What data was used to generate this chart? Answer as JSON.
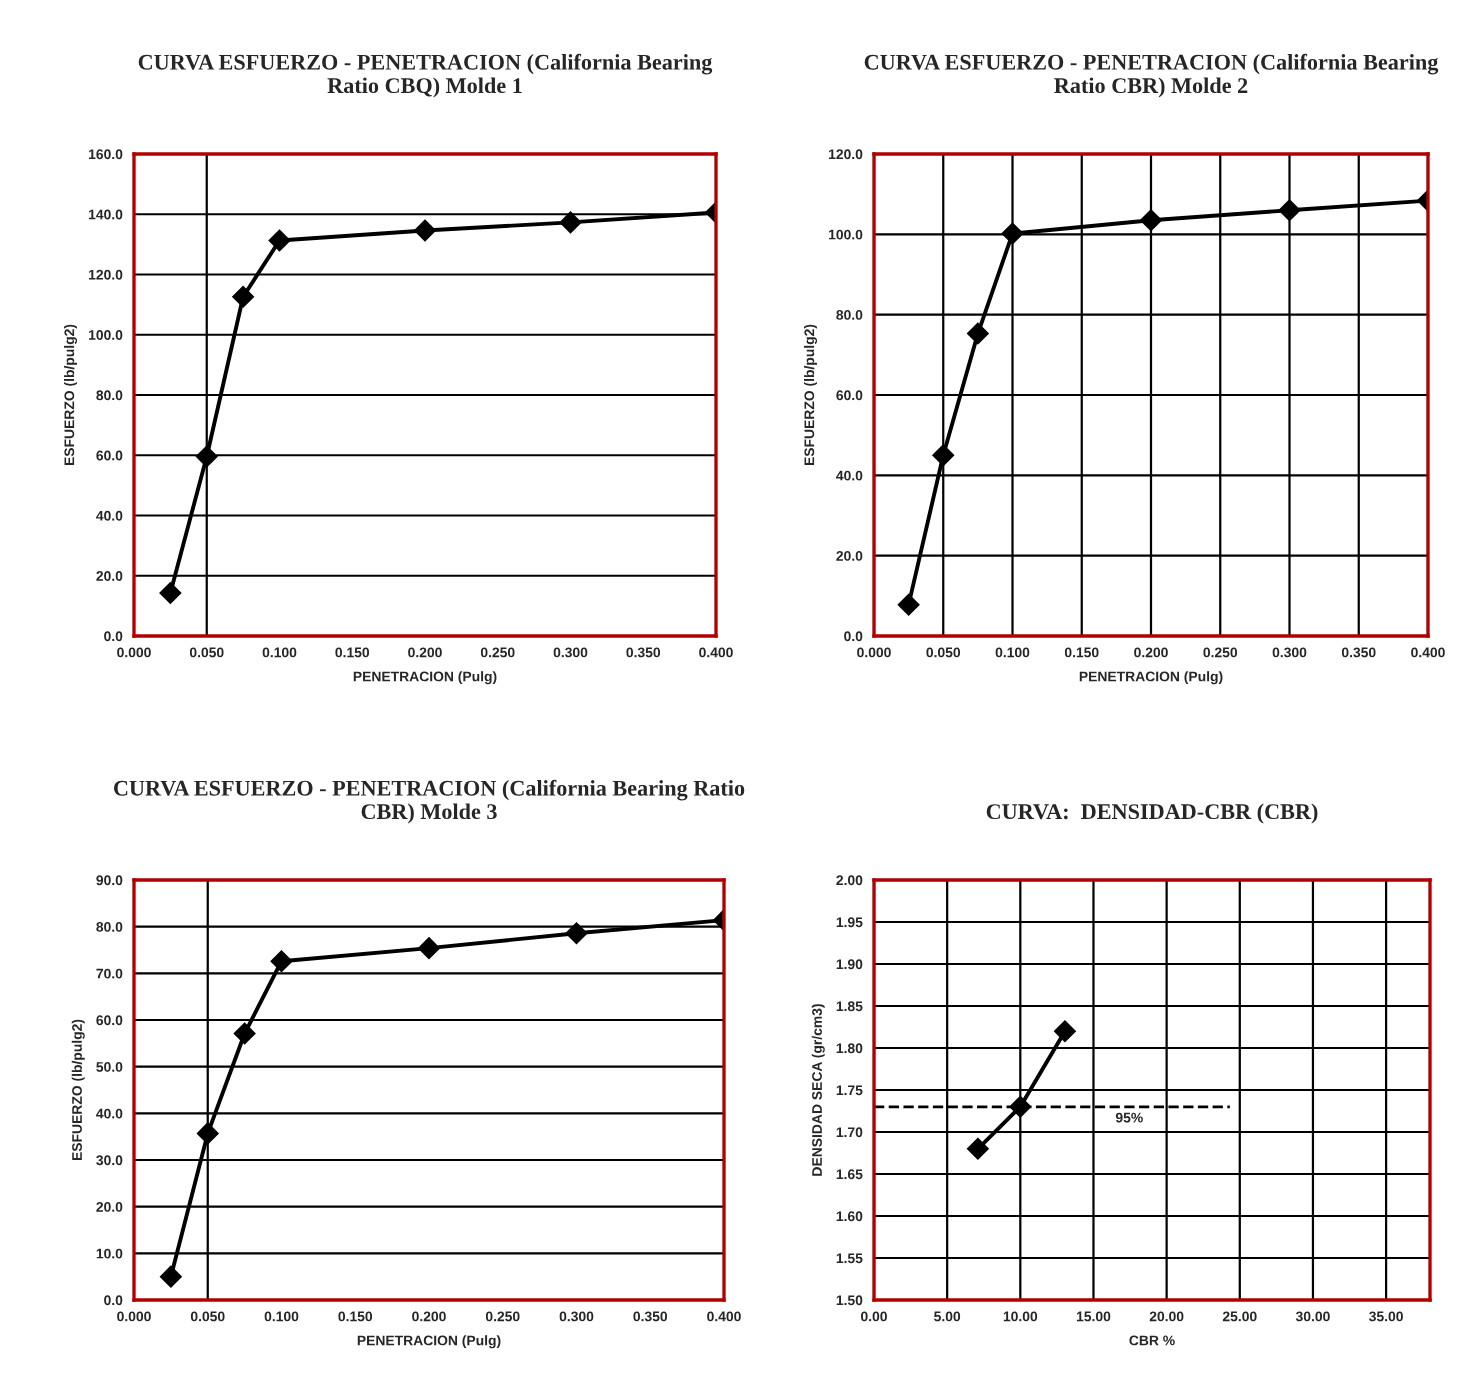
{
  "chart_data": [
    {
      "type": "line",
      "title": "CURVA ESFUERZO - PENETRACION (California Bearing Ratio CBQ) Molde 1",
      "xlabel": "PENETRACION (Pulg)",
      "ylabel": "ESFUERZO (lb/pulg2)",
      "x": [
        0.025,
        0.05,
        0.075,
        0.1,
        0.2,
        0.3,
        0.4
      ],
      "series": [
        {
          "color": "#000000",
          "values": [
            14.3,
            59.6,
            112.6,
            131.3,
            134.6,
            137.3,
            140.6
          ]
        }
      ],
      "xlim": [
        0,
        0.4
      ],
      "xticks": [
        {
          "value": 0,
          "label": "0.000"
        },
        {
          "value": 0.05,
          "label": "0.050"
        },
        {
          "value": 0.1,
          "label": "0.100"
        },
        {
          "value": 0.15,
          "label": "0.150"
        },
        {
          "value": 0.2,
          "label": "0.200"
        },
        {
          "value": 0.25,
          "label": "0.250"
        },
        {
          "value": 0.3,
          "label": "0.300"
        },
        {
          "value": 0.35,
          "label": "0.350"
        },
        {
          "value": 0.4,
          "label": "0.400"
        }
      ],
      "ylim": [
        0,
        160
      ],
      "yticks": [
        {
          "value": 0,
          "label": "0.0"
        },
        {
          "value": 20,
          "label": "20.0"
        },
        {
          "value": 40,
          "label": "40.0"
        },
        {
          "value": 60,
          "label": "60.0"
        },
        {
          "value": 80,
          "label": "80.0"
        },
        {
          "value": 100,
          "label": "100.0"
        },
        {
          "value": 120,
          "label": "120.0"
        },
        {
          "value": 140,
          "label": "140.0"
        },
        {
          "value": 160,
          "label": "160.0"
        }
      ],
      "ref_lines": [
        {
          "axis": "x",
          "value": 0.05
        }
      ],
      "grid": "y",
      "legend": false,
      "marker": "diamond",
      "line_style": "solid"
    },
    {
      "type": "line",
      "title": "CURVA ESFUERZO - PENETRACION (California Bearing Ratio CBR) Molde 2",
      "xlabel": "PENETRACION (Pulg)",
      "ylabel": "ESFUERZO (lb/pulg2)",
      "x": [
        0.025,
        0.05,
        0.075,
        0.1,
        0.2,
        0.3,
        0.4
      ],
      "series": [
        {
          "color": "#000000",
          "values": [
            7.8,
            45.0,
            75.3,
            100.2,
            103.5,
            106.0,
            108.4
          ]
        }
      ],
      "xlim": [
        0,
        0.4
      ],
      "xticks": [
        {
          "value": 0,
          "label": "0.000"
        },
        {
          "value": 0.05,
          "label": "0.050"
        },
        {
          "value": 0.1,
          "label": "0.100"
        },
        {
          "value": 0.15,
          "label": "0.150"
        },
        {
          "value": 0.2,
          "label": "0.200"
        },
        {
          "value": 0.25,
          "label": "0.250"
        },
        {
          "value": 0.3,
          "label": "0.300"
        },
        {
          "value": 0.35,
          "label": "0.350"
        },
        {
          "value": 0.4,
          "label": "0.400"
        }
      ],
      "ylim": [
        0,
        120
      ],
      "yticks": [
        {
          "value": 0,
          "label": "0.0"
        },
        {
          "value": 20,
          "label": "20.0"
        },
        {
          "value": 40,
          "label": "40.0"
        },
        {
          "value": 60,
          "label": "60.0"
        },
        {
          "value": 80,
          "label": "80.0"
        },
        {
          "value": 100,
          "label": "100.0"
        },
        {
          "value": 120,
          "label": "120.0"
        }
      ],
      "grid": true,
      "legend": false,
      "marker": "diamond",
      "line_style": "solid"
    },
    {
      "type": "line",
      "title": "CURVA ESFUERZO - PENETRACION (California Bearing Ratio CBR) Molde 3",
      "xlabel": "PENETRACION (Pulg)",
      "ylabel": "ESFUERZO (lb/pulg2)",
      "x": [
        0.025,
        0.05,
        0.075,
        0.1,
        0.2,
        0.3,
        0.4
      ],
      "series": [
        {
          "color": "#000000",
          "values": [
            5.0,
            35.7,
            57.1,
            72.6,
            75.4,
            78.6,
            81.4
          ]
        }
      ],
      "xlim": [
        0,
        0.4
      ],
      "xticks": [
        {
          "value": 0,
          "label": "0.000"
        },
        {
          "value": 0.05,
          "label": "0.050"
        },
        {
          "value": 0.1,
          "label": "0.100"
        },
        {
          "value": 0.15,
          "label": "0.150"
        },
        {
          "value": 0.2,
          "label": "0.200"
        },
        {
          "value": 0.25,
          "label": "0.250"
        },
        {
          "value": 0.3,
          "label": "0.300"
        },
        {
          "value": 0.35,
          "label": "0.350"
        },
        {
          "value": 0.4,
          "label": "0.400"
        }
      ],
      "ylim": [
        0,
        90
      ],
      "yticks": [
        {
          "value": 0,
          "label": "0.0"
        },
        {
          "value": 10,
          "label": "10.0"
        },
        {
          "value": 20,
          "label": "20.0"
        },
        {
          "value": 30,
          "label": "30.0"
        },
        {
          "value": 40,
          "label": "40.0"
        },
        {
          "value": 50,
          "label": "50.0"
        },
        {
          "value": 60,
          "label": "60.0"
        },
        {
          "value": 70,
          "label": "70.0"
        },
        {
          "value": 80,
          "label": "80.0"
        },
        {
          "value": 90,
          "label": "90.0"
        }
      ],
      "ref_lines": [
        {
          "axis": "x",
          "value": 0.05
        }
      ],
      "grid": "y",
      "legend": false,
      "marker": "diamond",
      "line_style": "solid"
    },
    {
      "type": "line",
      "title": "CURVA:  DENSIDAD-CBR (CBR)",
      "xlabel": "CBR %",
      "ylabel": "DENSIDAD SECA (gr/cm3)",
      "x": [
        7.1,
        10.0,
        13.05
      ],
      "series": [
        {
          "color": "#000000",
          "values": [
            1.68,
            1.73,
            1.82
          ]
        }
      ],
      "xlim": [
        0,
        38
      ],
      "xticks": [
        {
          "value": 0,
          "label": "0.00"
        },
        {
          "value": 5,
          "label": "5.00"
        },
        {
          "value": 10,
          "label": "10.00"
        },
        {
          "value": 15,
          "label": "15.00"
        },
        {
          "value": 20,
          "label": "20.00"
        },
        {
          "value": 25,
          "label": "25.00"
        },
        {
          "value": 30,
          "label": "30.00"
        },
        {
          "value": 35,
          "label": "35.00"
        }
      ],
      "ylim": [
        1.5,
        2.0
      ],
      "yticks": [
        {
          "value": 1.5,
          "label": "1.50"
        },
        {
          "value": 1.55,
          "label": "1.55"
        },
        {
          "value": 1.6,
          "label": "1.60"
        },
        {
          "value": 1.65,
          "label": "1.65"
        },
        {
          "value": 1.7,
          "label": "1.70"
        },
        {
          "value": 1.75,
          "label": "1.75"
        },
        {
          "value": 1.8,
          "label": "1.80"
        },
        {
          "value": 1.85,
          "label": "1.85"
        },
        {
          "value": 1.9,
          "label": "1.90"
        },
        {
          "value": 1.95,
          "label": "1.95"
        },
        {
          "value": 2.0,
          "label": "2.00"
        }
      ],
      "ref_lines": [
        {
          "axis": "y",
          "value": 1.73,
          "line_style": "dashed"
        }
      ],
      "annotations": [
        {
          "text": "95%",
          "x": 16.5,
          "y": 1.73
        }
      ],
      "grid": true,
      "legend": false,
      "marker": "diamond",
      "line_style": "solid"
    }
  ]
}
